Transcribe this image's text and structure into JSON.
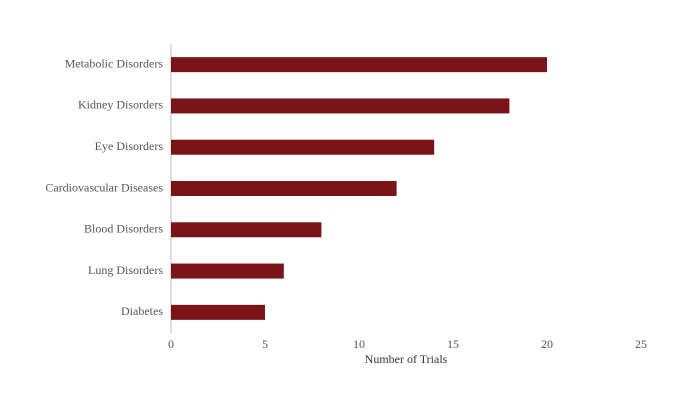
{
  "chart_data": {
    "type": "bar",
    "orientation": "horizontal",
    "x_label": "Number of Trials",
    "categories": [
      "Metabolic Disorders",
      "Kidney Disorders",
      "Eye Disorders",
      "Cardiovascular Diseases",
      "Blood Disorders",
      "Lung Disorders",
      "Diabetes"
    ],
    "values": [
      20,
      18,
      14,
      12,
      8,
      6,
      5
    ],
    "color": "#7b1416",
    "xlim": [
      0,
      25
    ],
    "xticks": [
      0,
      5,
      10,
      15,
      20,
      25
    ],
    "grid": false
  }
}
